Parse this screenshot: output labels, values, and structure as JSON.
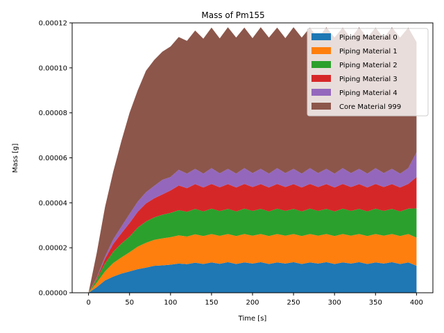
{
  "chart_data": {
    "type": "area",
    "stacked": true,
    "title": "Mass of Pm155",
    "xlabel": "Time [s]",
    "ylabel": "Mass [g]",
    "xlim": [
      -20,
      420
    ],
    "ylim": [
      0,
      0.00012
    ],
    "x_ticks": [
      0,
      50,
      100,
      150,
      200,
      250,
      300,
      350,
      400
    ],
    "y_ticks": [
      0,
      2e-05,
      4e-05,
      6e-05,
      8e-05,
      0.0001,
      0.00012
    ],
    "y_tick_labels": [
      "0.00000",
      "0.00002",
      "0.00004",
      "0.00006",
      "0.00008",
      "0.00010",
      "0.00012"
    ],
    "legend_position": "top-right",
    "grid": false,
    "x": [
      0,
      10,
      20,
      30,
      40,
      50,
      60,
      70,
      80,
      90,
      100,
      110,
      120,
      130,
      140,
      150,
      160,
      170,
      180,
      190,
      200,
      210,
      220,
      230,
      240,
      250,
      260,
      270,
      280,
      290,
      300,
      310,
      320,
      330,
      340,
      350,
      360,
      370,
      380,
      390,
      400
    ],
    "series": [
      {
        "name": "Piping Material 0",
        "color": "#1f77b4",
        "values": [
          0,
          2.5e-06,
          5.5e-06,
          7.2e-06,
          8.5e-06,
          9.5e-06,
          1.05e-05,
          1.12e-05,
          1.2e-05,
          1.22e-05,
          1.25e-05,
          1.3e-05,
          1.27e-05,
          1.34e-05,
          1.28e-05,
          1.35e-05,
          1.29e-05,
          1.36e-05,
          1.28e-05,
          1.35e-05,
          1.3e-05,
          1.36e-05,
          1.28e-05,
          1.35e-05,
          1.3e-05,
          1.36e-05,
          1.28e-05,
          1.35e-05,
          1.3e-05,
          1.36e-05,
          1.28e-05,
          1.35e-05,
          1.3e-05,
          1.36e-05,
          1.28e-05,
          1.35e-05,
          1.3e-05,
          1.36e-05,
          1.28e-05,
          1.35e-05,
          1.2e-05
        ]
      },
      {
        "name": "Piping Material 1",
        "color": "#ff7f0e",
        "values": [
          0,
          2e-06,
          4e-06,
          6e-06,
          7.2e-06,
          8.5e-06,
          1e-05,
          1.1e-05,
          1.15e-05,
          1.2e-05,
          1.22e-05,
          1.25e-05,
          1.23e-05,
          1.26e-05,
          1.24e-05,
          1.26e-05,
          1.24e-05,
          1.25e-05,
          1.24e-05,
          1.26e-05,
          1.24e-05,
          1.25e-05,
          1.24e-05,
          1.26e-05,
          1.24e-05,
          1.25e-05,
          1.24e-05,
          1.26e-05,
          1.24e-05,
          1.25e-05,
          1.24e-05,
          1.26e-05,
          1.24e-05,
          1.25e-05,
          1.24e-05,
          1.26e-05,
          1.24e-05,
          1.25e-05,
          1.24e-05,
          1.26e-05,
          1.25e-05
        ]
      },
      {
        "name": "Piping Material 2",
        "color": "#2ca02c",
        "values": [
          0,
          1.5e-06,
          3.5e-06,
          5e-06,
          6.2e-06,
          7e-06,
          8.5e-06,
          9.5e-06,
          1e-05,
          1.05e-05,
          1.08e-05,
          1.12e-05,
          1.1e-05,
          1.13e-05,
          1.1e-05,
          1.13e-05,
          1.1e-05,
          1.12e-05,
          1.1e-05,
          1.13e-05,
          1.1e-05,
          1.12e-05,
          1.1e-05,
          1.13e-05,
          1.1e-05,
          1.12e-05,
          1.1e-05,
          1.13e-05,
          1.1e-05,
          1.12e-05,
          1.1e-05,
          1.13e-05,
          1.1e-05,
          1.12e-05,
          1.1e-05,
          1.13e-05,
          1.1e-05,
          1.12e-05,
          1.1e-05,
          1.13e-05,
          1.3e-05
        ]
      },
      {
        "name": "Piping Material 3",
        "color": "#d62728",
        "values": [
          0,
          5e-07,
          2e-06,
          3.5e-06,
          4.5e-06,
          6e-06,
          7e-06,
          8e-06,
          8.5e-06,
          9e-06,
          1e-05,
          1.1e-05,
          1.05e-05,
          1.1e-05,
          1.06e-05,
          1.1e-05,
          1.06e-05,
          1.1e-05,
          1.06e-05,
          1.1e-05,
          1.06e-05,
          1.1e-05,
          1.06e-05,
          1.1e-05,
          1.06e-05,
          1.1e-05,
          1.06e-05,
          1.1e-05,
          1.06e-05,
          1.1e-05,
          1.06e-05,
          1.1e-05,
          1.06e-05,
          1.1e-05,
          1.06e-05,
          1.1e-05,
          1.06e-05,
          1.1e-05,
          1.06e-05,
          1.1e-05,
          1.4e-05
        ]
      },
      {
        "name": "Piping Material 4",
        "color": "#9467bd",
        "values": [
          0,
          3e-07,
          1e-06,
          2e-06,
          3e-06,
          4e-06,
          4.5e-06,
          5e-06,
          5.5e-06,
          6.5e-06,
          6e-06,
          7e-06,
          6.5e-06,
          6.8e-06,
          6.2e-06,
          7e-06,
          6.2e-06,
          6.8e-06,
          6.2e-06,
          7e-06,
          6.2e-06,
          6.8e-06,
          6.2e-06,
          7e-06,
          6.2e-06,
          6.8e-06,
          6.2e-06,
          7e-06,
          6.2e-06,
          6.8e-06,
          6.2e-06,
          7e-06,
          6.2e-06,
          6.8e-06,
          6.2e-06,
          7e-06,
          6.2e-06,
          6.8e-06,
          6.2e-06,
          7e-06,
          1.1e-05
        ]
      },
      {
        "name": "Core Material 999",
        "color": "#8c564b",
        "values": [
          0,
          1.1e-05,
          2.2e-05,
          3e-05,
          3.8e-05,
          4.5e-05,
          4.95e-05,
          5.4e-05,
          5.6e-05,
          5.7e-05,
          5.8e-05,
          5.9e-05,
          5.9e-05,
          6.15e-05,
          6e-05,
          6.25e-05,
          6e-05,
          6.3e-05,
          6.05e-05,
          6.25e-05,
          6e-05,
          6.3e-05,
          6.05e-05,
          6.25e-05,
          6e-05,
          6.3e-05,
          6.05e-05,
          6.25e-05,
          6e-05,
          6.3e-05,
          6.05e-05,
          6.25e-05,
          6e-05,
          6.3e-05,
          6.05e-05,
          6.25e-05,
          6e-05,
          6.3e-05,
          6.05e-05,
          6.25e-05,
          4.9e-05
        ]
      }
    ]
  }
}
